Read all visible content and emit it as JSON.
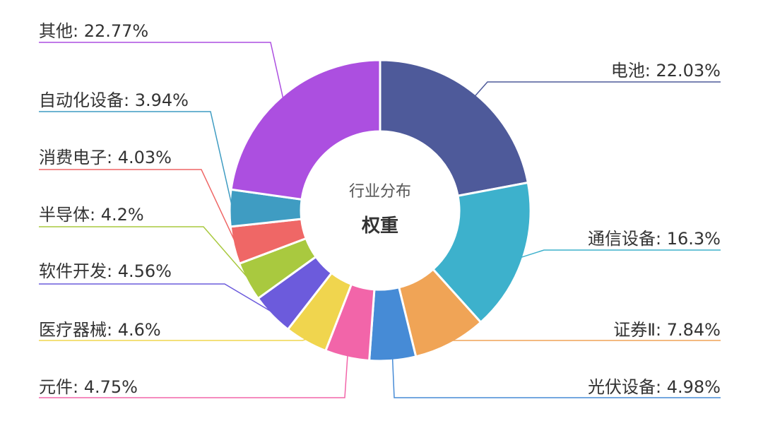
{
  "chart_data": {
    "type": "pie",
    "donut": true,
    "center_title": "行业分布",
    "center_subtitle": "权重",
    "series": [
      {
        "name": "电池",
        "value": 22.03,
        "label": "电池: 22.03%",
        "color": "#4e5a9a"
      },
      {
        "name": "通信设备",
        "value": 16.3,
        "label": "通信设备: 16.3%",
        "color": "#3db1cc"
      },
      {
        "name": "证券Ⅱ",
        "value": 7.84,
        "label": "证券Ⅱ: 7.84%",
        "color": "#f0a456"
      },
      {
        "name": "光伏设备",
        "value": 4.98,
        "label": "光伏设备: 4.98%",
        "color": "#468bd6"
      },
      {
        "name": "元件",
        "value": 4.75,
        "label": "元件: 4.75%",
        "color": "#f265a9"
      },
      {
        "name": "医疗器械",
        "value": 4.6,
        "label": "医疗器械: 4.6%",
        "color": "#f0d54e"
      },
      {
        "name": "软件开发",
        "value": 4.56,
        "label": "软件开发: 4.56%",
        "color": "#6c5bdc"
      },
      {
        "name": "半导体",
        "value": 4.2,
        "label": "半导体: 4.2%",
        "color": "#a9c93f"
      },
      {
        "name": "消费电子",
        "value": 4.03,
        "label": "消费电子: 4.03%",
        "color": "#ef6766"
      },
      {
        "name": "自动化设备",
        "value": 3.94,
        "label": "自动化设备: 3.94%",
        "color": "#3f9cc2"
      },
      {
        "name": "其他",
        "value": 22.77,
        "label": "其他: 22.77%",
        "color": "#ac4fe0"
      }
    ]
  }
}
